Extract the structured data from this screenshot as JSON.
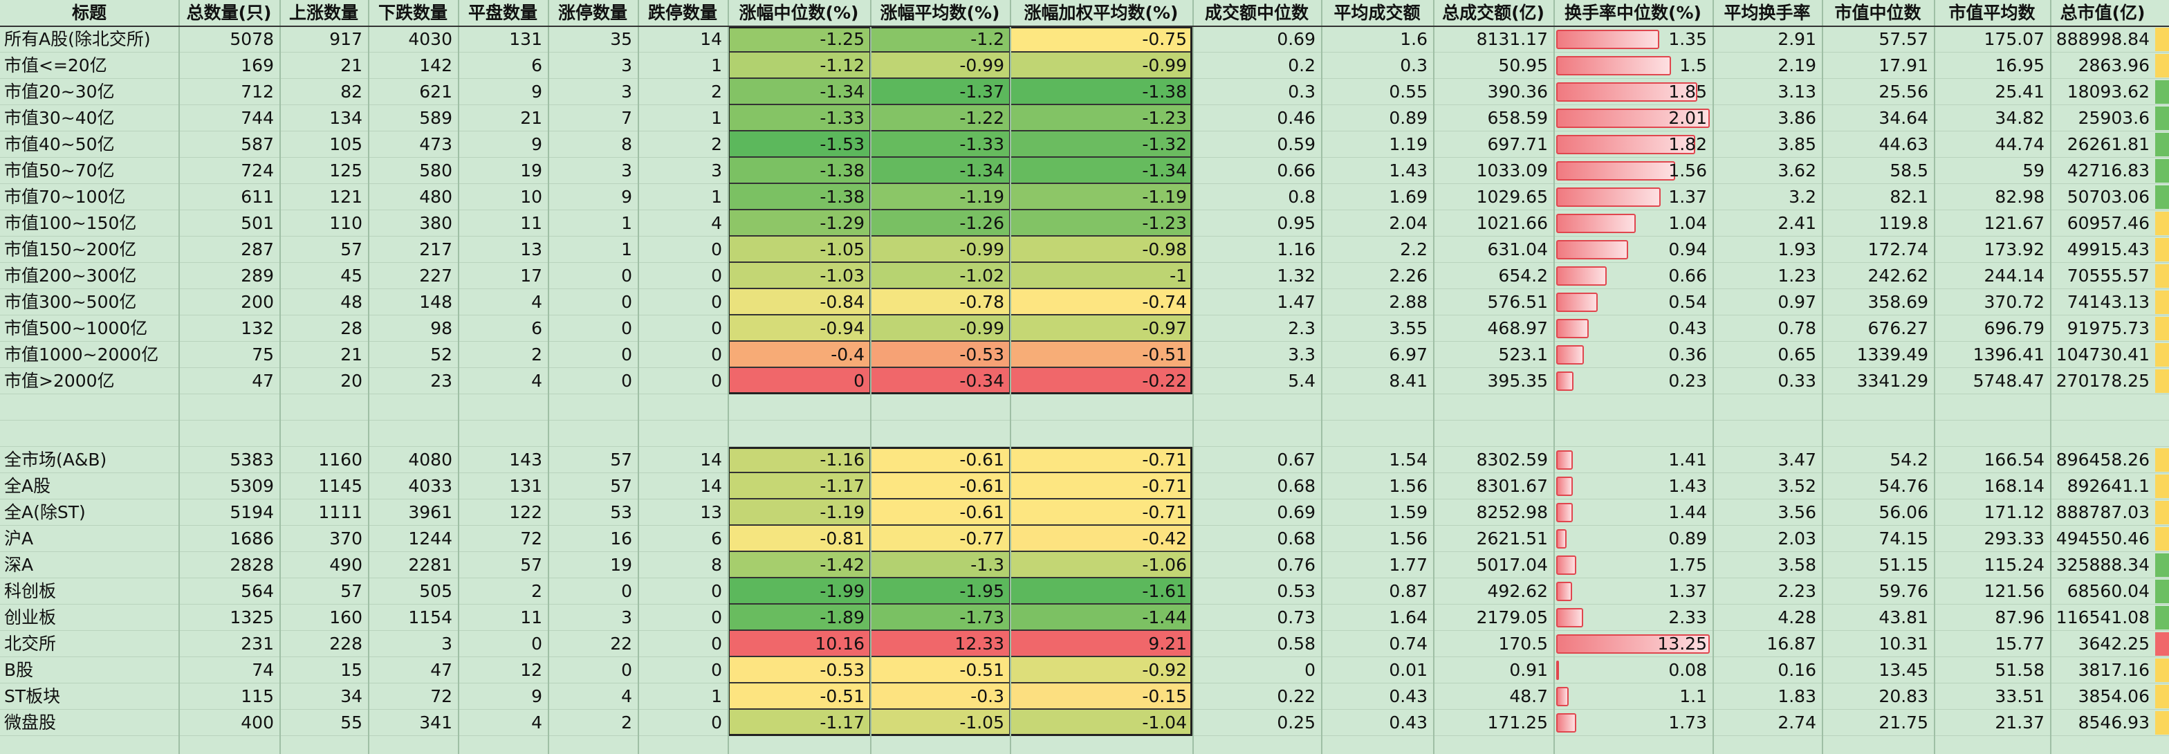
{
  "columns": [
    "标题",
    "总数量(只)",
    "上涨数量",
    "下跌数量",
    "平盘数量",
    "涨停数量",
    "跌停数量",
    "涨幅中位数(%)",
    "涨幅平均数(%)",
    "涨幅加权平均数(%)",
    "成交额中位数",
    "平均成交额",
    "总成交额(亿)",
    "换手率中位数(%)",
    "平均换手率",
    "市值中位数",
    "市值平均数",
    "总市值(亿)"
  ],
  "group1": [
    [
      "所有A股(除北交所)",
      "5078",
      "917",
      "4030",
      "131",
      "35",
      "14",
      "-1.25",
      "-1.2",
      "-0.75",
      "0.69",
      "1.6",
      "8131.17",
      "1.35",
      "2.91",
      "57.57",
      "175.07",
      "888998.84"
    ],
    [
      "市值<=20亿",
      "169",
      "21",
      "142",
      "6",
      "3",
      "1",
      "-1.12",
      "-0.99",
      "-0.99",
      "0.2",
      "0.3",
      "50.95",
      "1.5",
      "2.19",
      "17.91",
      "16.95",
      "2863.96"
    ],
    [
      "市值20~30亿",
      "712",
      "82",
      "621",
      "9",
      "3",
      "2",
      "-1.34",
      "-1.37",
      "-1.38",
      "0.3",
      "0.55",
      "390.36",
      "1.85",
      "3.13",
      "25.56",
      "25.41",
      "18093.62"
    ],
    [
      "市值30~40亿",
      "744",
      "134",
      "589",
      "21",
      "7",
      "1",
      "-1.33",
      "-1.22",
      "-1.23",
      "0.46",
      "0.89",
      "658.59",
      "2.01",
      "3.86",
      "34.64",
      "34.82",
      "25903.6"
    ],
    [
      "市值40~50亿",
      "587",
      "105",
      "473",
      "9",
      "8",
      "2",
      "-1.53",
      "-1.33",
      "-1.32",
      "0.59",
      "1.19",
      "697.71",
      "1.82",
      "3.85",
      "44.63",
      "44.74",
      "26261.81"
    ],
    [
      "市值50~70亿",
      "724",
      "125",
      "580",
      "19",
      "3",
      "3",
      "-1.38",
      "-1.34",
      "-1.34",
      "0.66",
      "1.43",
      "1033.09",
      "1.56",
      "3.62",
      "58.5",
      "59",
      "42716.83"
    ],
    [
      "市值70~100亿",
      "611",
      "121",
      "480",
      "10",
      "9",
      "1",
      "-1.38",
      "-1.19",
      "-1.19",
      "0.8",
      "1.69",
      "1029.65",
      "1.37",
      "3.2",
      "82.1",
      "82.98",
      "50703.06"
    ],
    [
      "市值100~150亿",
      "501",
      "110",
      "380",
      "11",
      "1",
      "4",
      "-1.29",
      "-1.26",
      "-1.23",
      "0.95",
      "2.04",
      "1021.66",
      "1.04",
      "2.41",
      "119.8",
      "121.67",
      "60957.46"
    ],
    [
      "市值150~200亿",
      "287",
      "57",
      "217",
      "13",
      "1",
      "0",
      "-1.05",
      "-0.99",
      "-0.98",
      "1.16",
      "2.2",
      "631.04",
      "0.94",
      "1.93",
      "172.74",
      "173.92",
      "49915.43"
    ],
    [
      "市值200~300亿",
      "289",
      "45",
      "227",
      "17",
      "0",
      "0",
      "-1.03",
      "-1.02",
      "-1",
      "1.32",
      "2.26",
      "654.2",
      "0.66",
      "1.23",
      "242.62",
      "244.14",
      "70555.57"
    ],
    [
      "市值300~500亿",
      "200",
      "48",
      "148",
      "4",
      "0",
      "0",
      "-0.84",
      "-0.78",
      "-0.74",
      "1.47",
      "2.88",
      "576.51",
      "0.54",
      "0.97",
      "358.69",
      "370.72",
      "74143.13"
    ],
    [
      "市值500~1000亿",
      "132",
      "28",
      "98",
      "6",
      "0",
      "0",
      "-0.94",
      "-0.99",
      "-0.97",
      "2.3",
      "3.55",
      "468.97",
      "0.43",
      "0.78",
      "676.27",
      "696.79",
      "91975.73"
    ],
    [
      "市值1000~2000亿",
      "75",
      "21",
      "52",
      "2",
      "0",
      "0",
      "-0.4",
      "-0.53",
      "-0.51",
      "3.3",
      "6.97",
      "523.1",
      "0.36",
      "0.65",
      "1339.49",
      "1396.41",
      "104730.41"
    ],
    [
      "市值>2000亿",
      "47",
      "20",
      "23",
      "4",
      "0",
      "0",
      "0",
      "-0.34",
      "-0.22",
      "5.4",
      "8.41",
      "395.35",
      "0.23",
      "0.33",
      "3341.29",
      "5748.47",
      "270178.25"
    ]
  ],
  "group2": [
    [
      "全市场(A&B)",
      "5383",
      "1160",
      "4080",
      "143",
      "57",
      "14",
      "-1.16",
      "-0.61",
      "-0.71",
      "0.67",
      "1.54",
      "8302.59",
      "1.41",
      "3.47",
      "54.2",
      "166.54",
      "896458.26"
    ],
    [
      "全A股",
      "5309",
      "1145",
      "4033",
      "131",
      "57",
      "14",
      "-1.17",
      "-0.61",
      "-0.71",
      "0.68",
      "1.56",
      "8301.67",
      "1.43",
      "3.52",
      "54.76",
      "168.14",
      "892641.1"
    ],
    [
      "全A(除ST)",
      "5194",
      "1111",
      "3961",
      "122",
      "53",
      "13",
      "-1.19",
      "-0.61",
      "-0.71",
      "0.69",
      "1.59",
      "8252.98",
      "1.44",
      "3.56",
      "56.06",
      "171.12",
      "888787.03"
    ],
    [
      "沪A",
      "1686",
      "370",
      "1244",
      "72",
      "16",
      "6",
      "-0.81",
      "-0.77",
      "-0.42",
      "0.68",
      "1.56",
      "2621.51",
      "0.89",
      "2.03",
      "74.15",
      "293.33",
      "494550.46"
    ],
    [
      "深A",
      "2828",
      "490",
      "2281",
      "57",
      "19",
      "8",
      "-1.42",
      "-1.3",
      "-1.06",
      "0.76",
      "1.77",
      "5017.04",
      "1.75",
      "3.58",
      "51.15",
      "115.24",
      "325888.34"
    ],
    [
      "科创板",
      "564",
      "57",
      "505",
      "2",
      "0",
      "0",
      "-1.99",
      "-1.95",
      "-1.61",
      "0.53",
      "0.87",
      "492.62",
      "1.37",
      "2.23",
      "59.76",
      "121.56",
      "68560.04"
    ],
    [
      "创业板",
      "1325",
      "160",
      "1154",
      "11",
      "3",
      "0",
      "-1.89",
      "-1.73",
      "-1.44",
      "0.73",
      "1.64",
      "2179.05",
      "2.33",
      "4.28",
      "43.81",
      "87.96",
      "116541.08"
    ],
    [
      "北交所",
      "231",
      "228",
      "3",
      "0",
      "22",
      "0",
      "10.16",
      "12.33",
      "9.21",
      "0.58",
      "0.74",
      "170.5",
      "13.25",
      "16.87",
      "10.31",
      "15.77",
      "3642.25"
    ],
    [
      "B股",
      "74",
      "15",
      "47",
      "12",
      "0",
      "0",
      "-0.53",
      "-0.51",
      "-0.92",
      "0",
      "0.01",
      "0.91",
      "0.08",
      "0.16",
      "13.45",
      "51.58",
      "3817.16"
    ],
    [
      "ST板块",
      "115",
      "34",
      "72",
      "9",
      "4",
      "1",
      "-0.51",
      "-0.3",
      "-0.15",
      "0.22",
      "0.43",
      "48.7",
      "1.1",
      "1.83",
      "20.83",
      "33.51",
      "3854.06"
    ],
    [
      "微盘股",
      "400",
      "55",
      "341",
      "4",
      "2",
      "0",
      "-1.17",
      "-1.05",
      "-1.04",
      "0.25",
      "0.43",
      "171.25",
      "1.73",
      "2.74",
      "21.75",
      "21.37",
      "8546.93"
    ]
  ],
  "colors": {
    "background": "#cfe8d3",
    "heat_low": "#5cb85c",
    "heat_mid": "#fde781",
    "heat_high": "#f0676a",
    "bar_border": "#e0464e"
  }
}
